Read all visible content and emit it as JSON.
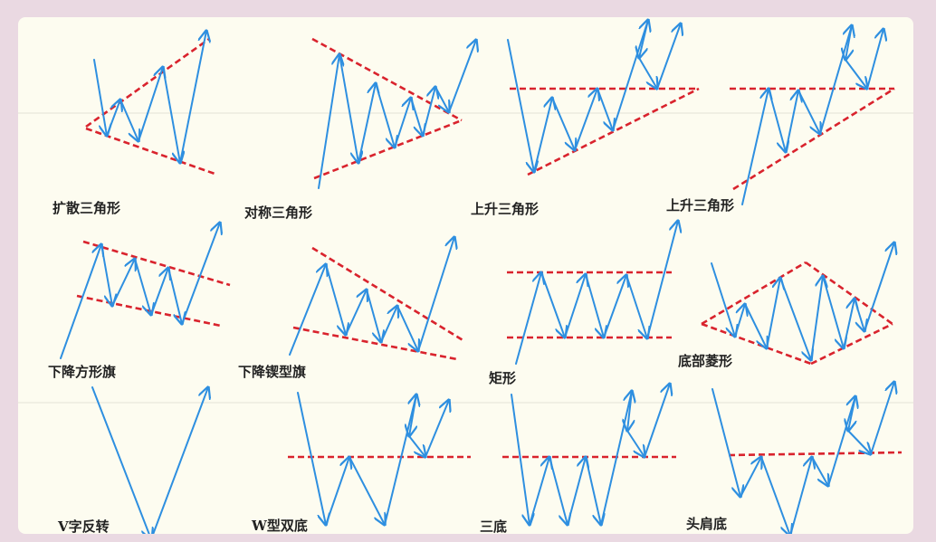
{
  "colors": {
    "background": "#ead9e2",
    "card": "#fdfcf0",
    "trend_line": "#d9232d",
    "price_arrow": "#2e8fe0",
    "label_text": "#222222"
  },
  "patterns": [
    {
      "label": "扩散三角形"
    },
    {
      "label": "对称三角形"
    },
    {
      "label": "上升三角形"
    },
    {
      "label": "上升三角形"
    },
    {
      "label": "下降方形旗"
    },
    {
      "label": "下降锲型旗"
    },
    {
      "label": "矩形"
    },
    {
      "label": "底部菱形"
    },
    {
      "label": "V字反转"
    },
    {
      "label": "W型双底"
    },
    {
      "label": "三底"
    },
    {
      "label": "头肩底"
    }
  ]
}
